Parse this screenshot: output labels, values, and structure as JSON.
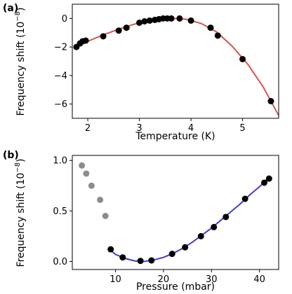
{
  "chart_data": [
    {
      "panel_label": "(a)",
      "type": "scatter",
      "xlabel": "Temperature (K)",
      "ylabel": "Frequency shift (10",
      "ylabel_exp": "−8",
      "ylabel_close": ")",
      "xlim": [
        1.7,
        5.7
      ],
      "ylim": [
        -7,
        1
      ],
      "xticks": [
        2,
        3,
        4,
        5
      ],
      "xtick_labels": [
        "2",
        "3",
        "4",
        "5"
      ],
      "yticks": [
        0,
        -2,
        -4,
        -6
      ],
      "ytick_labels": [
        "0",
        "−2",
        "−4",
        "−6"
      ],
      "grid": false,
      "point_color": "#000000",
      "fit_color": "#d9534f",
      "points": {
        "x": [
          1.78,
          1.85,
          1.9,
          1.96,
          2.3,
          2.6,
          2.75,
          3.0,
          3.1,
          3.2,
          3.3,
          3.38,
          3.46,
          3.54,
          3.62,
          3.78,
          4.0,
          4.38,
          4.52,
          5.0,
          5.55
        ],
        "y": [
          -2.0,
          -1.75,
          -1.6,
          -1.55,
          -1.25,
          -0.85,
          -0.65,
          -0.3,
          -0.2,
          -0.15,
          -0.1,
          -0.05,
          0.0,
          0.0,
          0.0,
          0.0,
          -0.15,
          -0.65,
          -1.2,
          -2.85,
          -5.8
        ]
      },
      "fit": {
        "x": [
          1.75,
          2.0,
          2.3,
          2.6,
          2.9,
          3.2,
          3.5,
          3.7,
          3.9,
          4.2,
          4.5,
          4.8,
          5.1,
          5.4,
          5.7
        ],
        "y": [
          -2.05,
          -1.6,
          -1.15,
          -0.75,
          -0.4,
          -0.15,
          -0.02,
          0.0,
          -0.05,
          -0.35,
          -0.95,
          -1.95,
          -3.2,
          -4.8,
          -6.8
        ]
      }
    },
    {
      "panel_label": "(b)",
      "type": "scatter",
      "xlabel": "Pressure (mbar)",
      "ylabel": "Frequency shift (10",
      "ylabel_exp": "−8",
      "ylabel_close": ")",
      "xlim": [
        1,
        44
      ],
      "ylim": [
        -0.08,
        1.05
      ],
      "xticks": [
        10,
        20,
        30,
        40
      ],
      "xtick_labels": [
        "10",
        "20",
        "30",
        "40"
      ],
      "yticks": [
        0.0,
        0.5,
        1.0
      ],
      "ytick_labels": [
        "0.0",
        "0.5",
        "1.0"
      ],
      "grid": false,
      "excluded_color": "#8c8c8c",
      "point_color": "#000000",
      "fit_color": "#3f3fcf",
      "excluded_points": {
        "x": [
          3.0,
          3.9,
          5.0,
          6.8,
          7.9
        ],
        "y": [
          0.95,
          0.87,
          0.75,
          0.61,
          0.45
        ]
      },
      "points": {
        "x": [
          9.0,
          11.5,
          15.2,
          17.5,
          21.8,
          24.5,
          27.8,
          30.5,
          33.0,
          37.0,
          41.0,
          42.0
        ],
        "y": [
          0.12,
          0.04,
          0.005,
          0.01,
          0.075,
          0.14,
          0.25,
          0.34,
          0.44,
          0.62,
          0.78,
          0.82
        ]
      },
      "fit": {
        "x": [
          8.5,
          10,
          12,
          14,
          16,
          18,
          20,
          22,
          24,
          26,
          28,
          30,
          32,
          34,
          36,
          38,
          40,
          42
        ],
        "y": [
          0.13,
          0.07,
          0.03,
          0.005,
          0.0,
          0.015,
          0.04,
          0.08,
          0.13,
          0.19,
          0.26,
          0.33,
          0.41,
          0.49,
          0.57,
          0.66,
          0.74,
          0.83
        ]
      }
    }
  ]
}
